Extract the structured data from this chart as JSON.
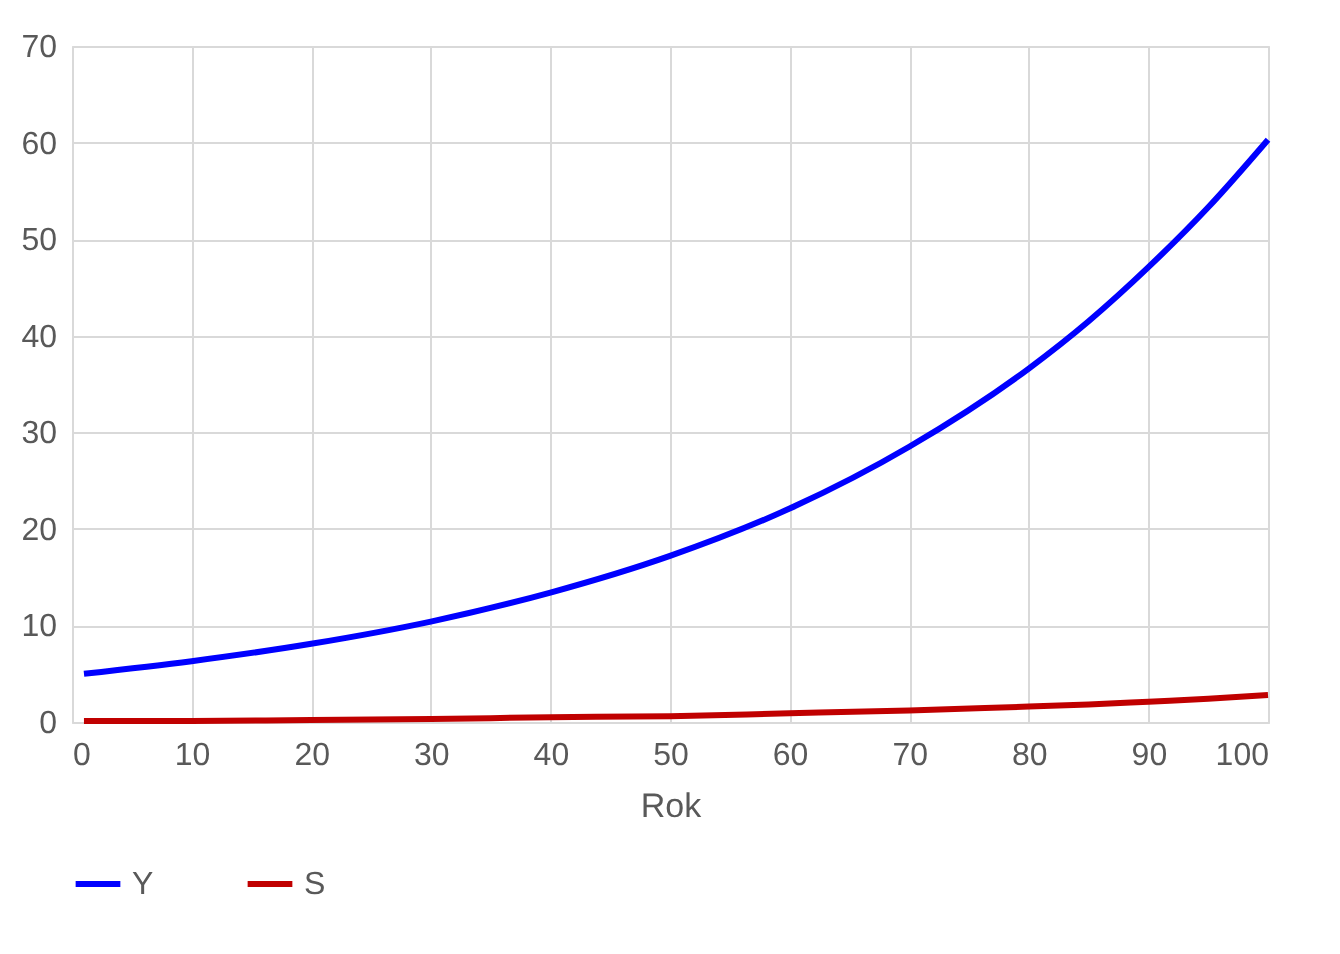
{
  "chart_data": {
    "type": "line",
    "xlabel": "Rok",
    "x": [
      1,
      10,
      20,
      30,
      40,
      50,
      60,
      70,
      80,
      85,
      90,
      95,
      100
    ],
    "series": [
      {
        "name": "Y",
        "color": "#0000ff",
        "values": [
          5.0,
          6.3,
          8.1,
          10.4,
          13.4,
          17.2,
          22.1,
          28.5,
          36.6,
          41.5,
          47.1,
          53.3,
          60.3
        ]
      },
      {
        "name": "S",
        "color": "#c00000",
        "values": [
          0.1,
          0.1,
          0.2,
          0.3,
          0.5,
          0.6,
          0.9,
          1.2,
          1.6,
          1.8,
          2.1,
          2.4,
          2.8
        ]
      }
    ],
    "xlim": [
      0,
      100
    ],
    "xticks": [
      0,
      10,
      20,
      30,
      40,
      50,
      60,
      70,
      80,
      90,
      100
    ],
    "ylim": [
      0,
      70
    ],
    "yticks": [
      0,
      10,
      20,
      30,
      40,
      50,
      60,
      70
    ],
    "grid": true,
    "legend": "bottom",
    "marker": "none",
    "line_style": "solid"
  }
}
